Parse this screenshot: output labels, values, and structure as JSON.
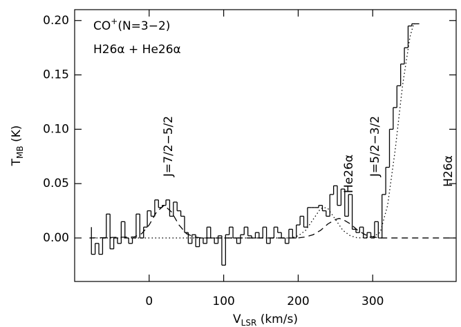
{
  "chart_data": {
    "type": "line",
    "title": [
      "CO",
      "+",
      "(N=3−2)"
    ],
    "subtitle": "H26α + He26α",
    "xlabel": [
      "V",
      "LSR",
      " (km/s)"
    ],
    "ylabel": [
      "T",
      "MB",
      " (K)"
    ],
    "annotations": [
      "J=7/2−5/2",
      "He26α",
      "J=5/2−3/2",
      "H26α"
    ],
    "xlim": [
      -100,
      412
    ],
    "ylim": [
      -0.04,
      0.21
    ],
    "xticks": [
      0,
      100,
      200,
      300
    ],
    "yticks": [
      {
        "value": 0,
        "label": "0.00"
      },
      {
        "value": 0.05,
        "label": "0.05"
      },
      {
        "value": 0.1,
        "label": "0.10"
      },
      {
        "value": 0.15,
        "label": "0.15"
      },
      {
        "value": 0.2,
        "label": "0.20"
      }
    ],
    "series": [
      {
        "style": "steps",
        "color": "#000000",
        "x": [
          -80,
          -75,
          -70,
          -65,
          -60,
          -55,
          -50,
          -45,
          -40,
          -35,
          -30,
          -25,
          -20,
          -15,
          -10,
          -5,
          0,
          5,
          10,
          15,
          20,
          25,
          30,
          35,
          40,
          45,
          50,
          55,
          60,
          65,
          70,
          75,
          80,
          85,
          90,
          95,
          100,
          105,
          110,
          115,
          120,
          125,
          130,
          135,
          140,
          145,
          150,
          155,
          160,
          165,
          170,
          175,
          180,
          185,
          190,
          195,
          200,
          205,
          210,
          215,
          220,
          225,
          230,
          235,
          240,
          245,
          250,
          255,
          260,
          265,
          270,
          275,
          280,
          285,
          290,
          295,
          300,
          305,
          310,
          315,
          320,
          325,
          330,
          335,
          340,
          345,
          350,
          355,
          360
        ],
        "values": [
          0.01,
          -0.015,
          -0.005,
          -0.015,
          0.0,
          0.022,
          -0.01,
          0.0,
          -0.005,
          0.015,
          0.0,
          -0.005,
          0.0,
          0.022,
          0.0,
          0.01,
          0.025,
          0.02,
          0.035,
          0.028,
          0.03,
          0.035,
          0.02,
          0.033,
          0.025,
          0.02,
          0.005,
          -0.005,
          0.003,
          -0.008,
          0.0,
          -0.005,
          0.01,
          0.0,
          -0.005,
          0.002,
          -0.025,
          0.003,
          0.01,
          0.0,
          -0.005,
          0.003,
          0.01,
          0.002,
          0.0,
          0.005,
          0.0,
          0.01,
          -0.005,
          0.0,
          0.01,
          0.005,
          0.0,
          -0.005,
          0.008,
          0.0,
          0.012,
          0.02,
          0.01,
          0.028,
          0.028,
          0.028,
          0.03,
          0.025,
          0.02,
          0.04,
          0.048,
          0.03,
          0.045,
          0.02,
          0.04,
          0.008,
          0.005,
          0.01,
          0.0,
          0.005,
          0.0,
          0.015,
          0.0,
          0.04,
          0.065,
          0.1,
          0.12,
          0.14,
          0.16,
          0.175,
          0.195,
          0.197,
          0.197
        ]
      },
      {
        "style": "dashed",
        "color": "#000000",
        "x": [
          -80,
          -20,
          -10,
          0,
          10,
          20,
          30,
          40,
          50,
          60,
          70,
          200,
          210,
          220,
          230,
          240,
          250,
          255,
          260,
          270,
          280,
          290,
          300,
          310,
          410
        ],
        "values": [
          0,
          0.001,
          0.004,
          0.012,
          0.024,
          0.03,
          0.024,
          0.012,
          0.004,
          0.001,
          0,
          0,
          0.001,
          0.003,
          0.007,
          0.013,
          0.017,
          0.018,
          0.017,
          0.013,
          0.007,
          0.003,
          0.001,
          0,
          0
        ]
      },
      {
        "style": "dotted",
        "color": "#000000",
        "x": [
          -80,
          190,
          200,
          210,
          220,
          230,
          235,
          240,
          250,
          260,
          270,
          280,
          300,
          310,
          320,
          330,
          340,
          350,
          355,
          360
        ],
        "values": [
          0,
          0,
          0.002,
          0.007,
          0.017,
          0.027,
          0.028,
          0.027,
          0.017,
          0.007,
          0.002,
          0,
          0.001,
          0.005,
          0.03,
          0.08,
          0.14,
          0.185,
          0.197,
          0.197
        ]
      }
    ]
  }
}
